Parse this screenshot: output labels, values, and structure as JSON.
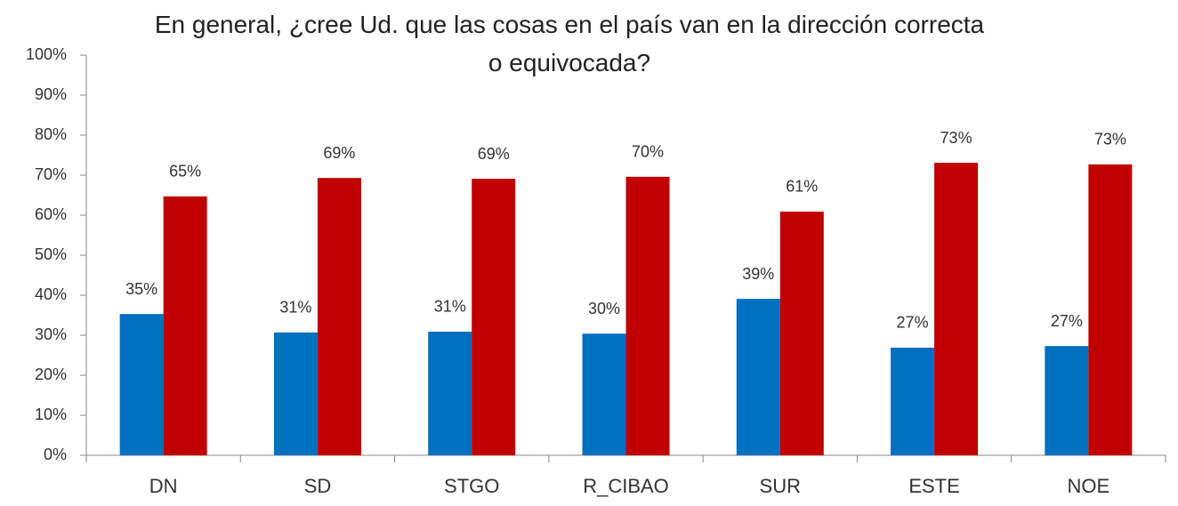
{
  "chart_data": {
    "type": "bar",
    "title": "En general, ¿cree Ud. que las cosas en el país van en la dirección correcta o equivocada?",
    "categories": [
      "DN",
      "SD",
      "STGO",
      "R_CIBAO",
      "SUR",
      "ESTE",
      "NOE"
    ],
    "series": [
      {
        "color": "#0070c0",
        "values": [
          35.3,
          30.7,
          30.9,
          30.4,
          39.1,
          26.9,
          27.3
        ],
        "value_labels": [
          "35%",
          "31%",
          "31%",
          "30%",
          "39%",
          "27%",
          "27%"
        ]
      },
      {
        "color": "#c00000",
        "values": [
          64.7,
          69.3,
          69.1,
          69.6,
          60.9,
          73.1,
          72.7
        ],
        "value_labels": [
          "65%",
          "69%",
          "69%",
          "70%",
          "61%",
          "73%",
          "73%"
        ]
      }
    ],
    "ylim": [
      0,
      100
    ],
    "yticks": [
      {
        "value": 0,
        "label": "0%"
      },
      {
        "value": 10,
        "label": "10%"
      },
      {
        "value": 20,
        "label": "20%"
      },
      {
        "value": 30,
        "label": "30%"
      },
      {
        "value": 40,
        "label": "40%"
      },
      {
        "value": 50,
        "label": "50%"
      },
      {
        "value": 60,
        "label": "60%"
      },
      {
        "value": 70,
        "label": "70%"
      },
      {
        "value": 80,
        "label": "80%"
      },
      {
        "value": 90,
        "label": "90%"
      },
      {
        "value": 100,
        "label": "100%"
      }
    ]
  }
}
